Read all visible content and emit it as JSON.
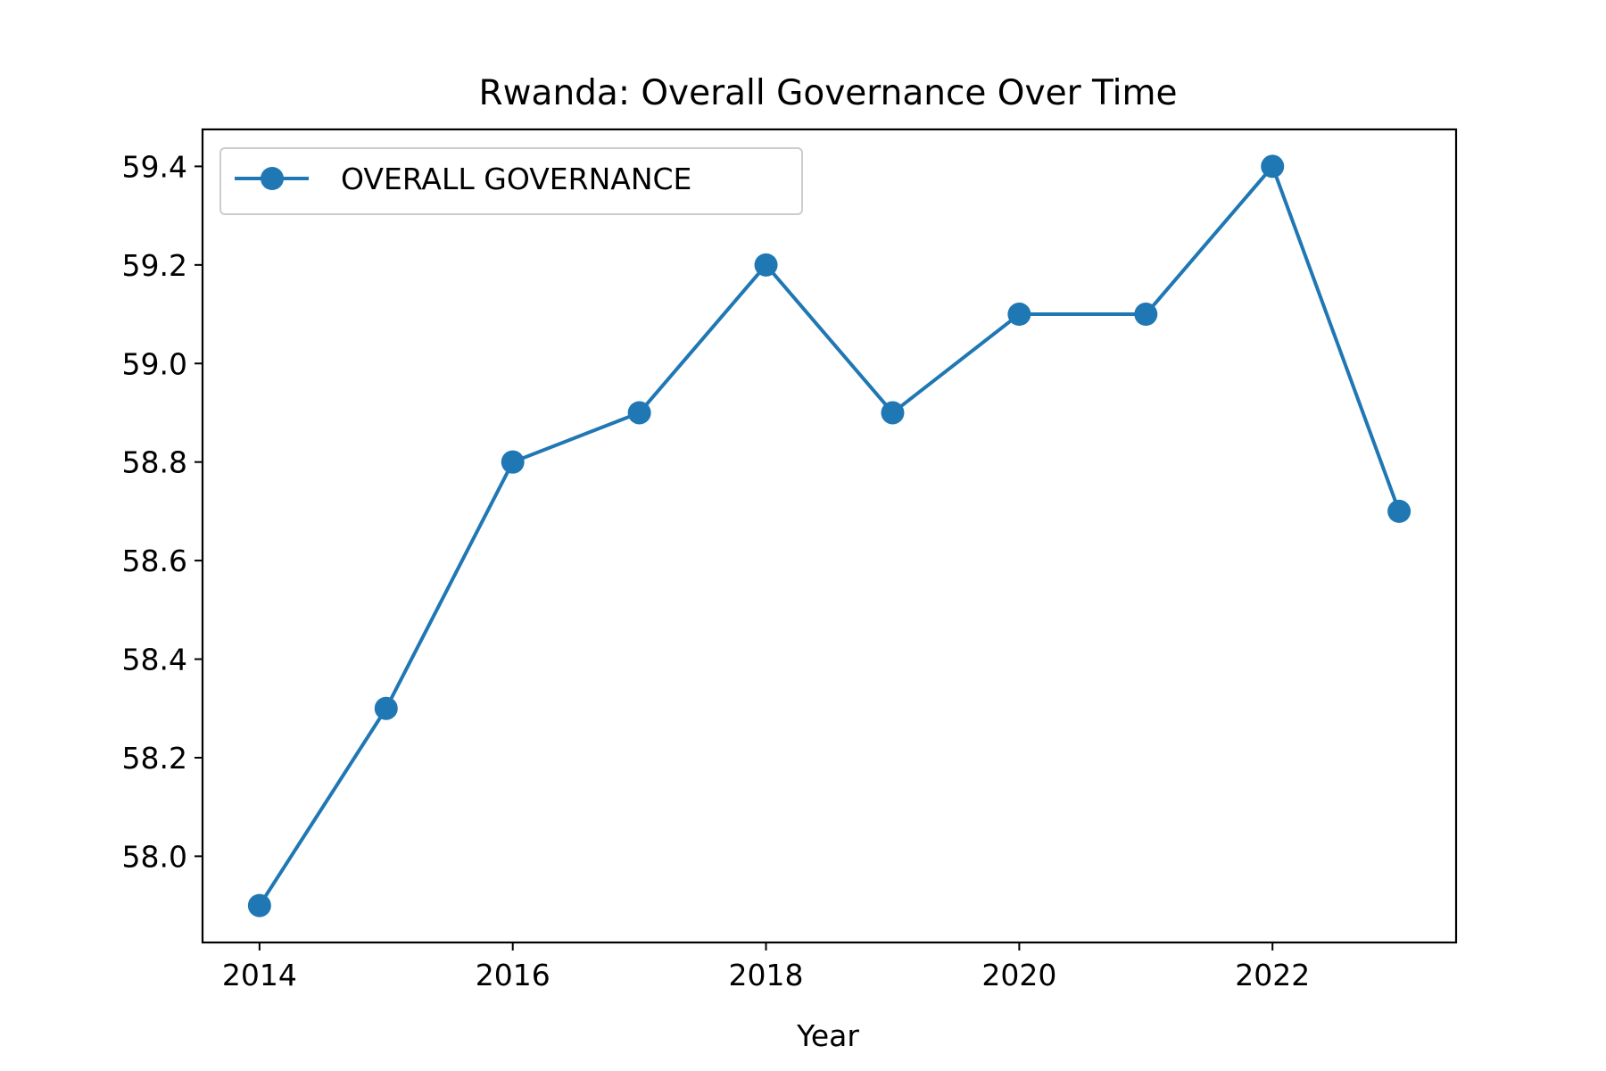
{
  "chart_data": {
    "type": "line",
    "title": "Rwanda: Overall Governance Over Time",
    "xlabel": "Year",
    "ylabel": "",
    "x": [
      2014,
      2015,
      2016,
      2017,
      2018,
      2019,
      2020,
      2021,
      2022,
      2023
    ],
    "series": [
      {
        "name": "OVERALL GOVERNANCE",
        "values": [
          57.9,
          58.3,
          58.8,
          58.9,
          59.2,
          58.9,
          59.1,
          59.1,
          59.4,
          58.7
        ],
        "color": "#1f77b4",
        "marker": "circle"
      }
    ],
    "xticks": [
      2014,
      2016,
      2018,
      2020,
      2022
    ],
    "xtick_labels": [
      "2014",
      "2016",
      "2018",
      "2020",
      "2022"
    ],
    "yticks": [
      58.0,
      58.2,
      58.4,
      58.6,
      58.8,
      59.0,
      59.2,
      59.4
    ],
    "ytick_labels": [
      "58.0",
      "58.2",
      "58.4",
      "58.6",
      "58.8",
      "59.0",
      "59.2",
      "59.4"
    ],
    "xlim": [
      2013.55,
      2023.45
    ],
    "ylim": [
      57.825,
      59.475
    ],
    "grid": false,
    "legend_position": "upper left"
  }
}
